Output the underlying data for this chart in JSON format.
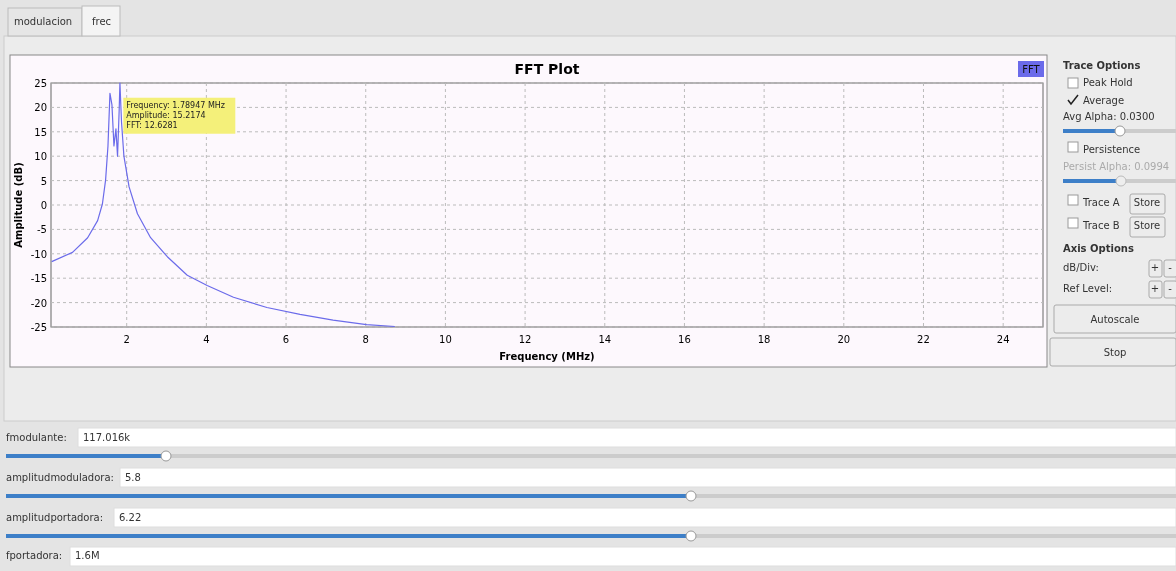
{
  "chart_data": [
    {
      "type": "line",
      "title": "FFT Plot",
      "xlabel": "Frequency (MHz)",
      "ylabel": "Amplitude (dB)",
      "legend": "top right",
      "grid": true,
      "xlim": [
        0.1,
        25
      ],
      "ylim": [
        -25,
        25
      ],
      "xticks": [
        2,
        4,
        6,
        8,
        10,
        12,
        14,
        16,
        18,
        20,
        22,
        24
      ],
      "yticks": [
        -25,
        -20,
        -15,
        -10,
        -5,
        0,
        5,
        10,
        15,
        20,
        25
      ],
      "x": [
        0.117,
        0.64,
        1.02,
        1.27,
        1.39,
        1.47,
        1.53,
        1.58,
        1.63,
        1.68,
        1.73,
        1.77,
        1.81,
        1.83,
        1.87,
        1.93,
        2.06,
        2.27,
        2.6,
        3.02,
        3.52,
        4.02,
        4.68,
        5.52,
        6.35,
        7.18,
        8.02,
        8.73
      ],
      "series": [
        {
          "name": "FFT",
          "color": "#6b6bea",
          "values": [
            -11.6,
            -9.7,
            -6.7,
            -3.2,
            0.2,
            5.1,
            12.1,
            22.9,
            20.5,
            12.1,
            15.6,
            10.0,
            19.1,
            25,
            17,
            10,
            3.7,
            -1.8,
            -6.7,
            -10.6,
            -14.4,
            -16.5,
            -18.9,
            -21,
            -22.4,
            -23.6,
            -24.5,
            -24.9
          ]
        }
      ],
      "annotations": [
        {
          "text": "Frequency: 1.78947 MHz\nAmplitude: 15.2174\nFFT: 12.6281",
          "x": 1.78947,
          "y": 15.2174
        }
      ]
    },
    {
      "type": "other",
      "annotations": [
        "modulacion",
        "frec",
        "Trace Options",
        "Peak Hold",
        "Average",
        "Avg Alpha: 0.0300",
        "Persistence",
        "Persist Alpha: 0.0994",
        "Trace A",
        "Store",
        "Trace B",
        "Store",
        "Axis Options",
        "dB/Div:",
        "+",
        "-",
        "Ref Level:",
        "+",
        "-",
        "Autoscale",
        "Stop",
        "fmodulante:",
        "117.016k",
        "amplitudmoduladora:",
        "5.8",
        "amplitudportadora:",
        "6.22",
        "fportadora:",
        "1.6M"
      ]
    }
  ]
}
